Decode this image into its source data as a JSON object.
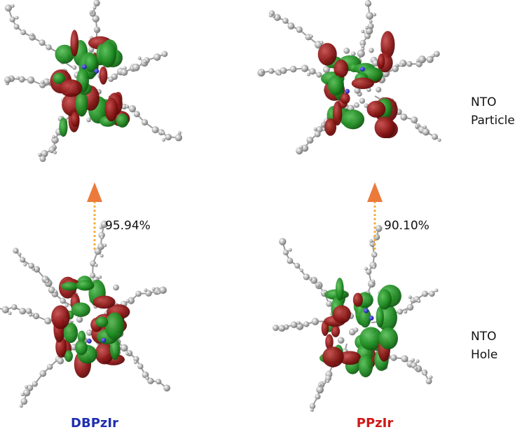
{
  "panels": [
    {
      "name": "DBPzIr",
      "transition": "95.94%"
    },
    {
      "name": "PPzIr",
      "transition": "90.10%"
    }
  ],
  "rows": [
    {
      "label": [
        "NTO",
        "Particle"
      ]
    },
    {
      "label": [
        "NTO",
        "Hole"
      ]
    }
  ]
}
